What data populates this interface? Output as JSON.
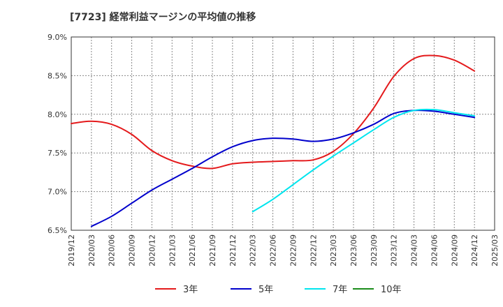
{
  "chart_data": {
    "type": "line",
    "title": "[7723]  経常利益マージンの平均値の推移",
    "xlabel": "",
    "ylabel": "",
    "x_ticks": [
      "2019/12",
      "2020/03",
      "2020/06",
      "2020/09",
      "2020/12",
      "2021/03",
      "2021/06",
      "2021/09",
      "2021/12",
      "2022/03",
      "2022/06",
      "2022/09",
      "2022/12",
      "2023/03",
      "2023/06",
      "2023/09",
      "2023/12",
      "2024/03",
      "2024/06",
      "2024/09",
      "2024/12",
      "2025/03"
    ],
    "ylim": [
      6.5,
      9.0
    ],
    "y_ticks": [
      6.5,
      7.0,
      7.5,
      8.0,
      8.5,
      9.0
    ],
    "y_tick_labels": [
      "6.5%",
      "7.0%",
      "7.5%",
      "8.0%",
      "8.5%",
      "9.0%"
    ],
    "grid": true,
    "legend_position": "bottom",
    "series": [
      {
        "name": "3年",
        "color": "#e41a1c",
        "points": [
          [
            "2019/12",
            7.88
          ],
          [
            "2020/03",
            7.91
          ],
          [
            "2020/06",
            7.87
          ],
          [
            "2020/09",
            7.74
          ],
          [
            "2020/12",
            7.53
          ],
          [
            "2021/03",
            7.4
          ],
          [
            "2021/06",
            7.33
          ],
          [
            "2021/09",
            7.3
          ],
          [
            "2021/12",
            7.36
          ],
          [
            "2022/03",
            7.38
          ],
          [
            "2022/06",
            7.39
          ],
          [
            "2022/09",
            7.4
          ],
          [
            "2022/12",
            7.41
          ],
          [
            "2023/03",
            7.52
          ],
          [
            "2023/06",
            7.75
          ],
          [
            "2023/09",
            8.08
          ],
          [
            "2023/12",
            8.49
          ],
          [
            "2024/03",
            8.72
          ],
          [
            "2024/06",
            8.76
          ],
          [
            "2024/09",
            8.7
          ],
          [
            "2024/12",
            8.56
          ]
        ]
      },
      {
        "name": "5年",
        "color": "#0000cc",
        "points": [
          [
            "2020/03",
            6.55
          ],
          [
            "2020/06",
            6.68
          ],
          [
            "2020/09",
            6.85
          ],
          [
            "2020/12",
            7.02
          ],
          [
            "2021/03",
            7.16
          ],
          [
            "2021/06",
            7.3
          ],
          [
            "2021/09",
            7.45
          ],
          [
            "2021/12",
            7.58
          ],
          [
            "2022/03",
            7.66
          ],
          [
            "2022/06",
            7.69
          ],
          [
            "2022/09",
            7.68
          ],
          [
            "2022/12",
            7.65
          ],
          [
            "2023/03",
            7.68
          ],
          [
            "2023/06",
            7.76
          ],
          [
            "2023/09",
            7.87
          ],
          [
            "2023/12",
            8.01
          ],
          [
            "2024/03",
            8.05
          ],
          [
            "2024/06",
            8.04
          ],
          [
            "2024/09",
            8.0
          ],
          [
            "2024/12",
            7.96
          ]
        ]
      },
      {
        "name": "7年",
        "color": "#00e5ee",
        "points": [
          [
            "2022/03",
            6.74
          ],
          [
            "2022/06",
            6.9
          ],
          [
            "2022/09",
            7.09
          ],
          [
            "2022/12",
            7.28
          ],
          [
            "2023/03",
            7.46
          ],
          [
            "2023/06",
            7.63
          ],
          [
            "2023/09",
            7.8
          ],
          [
            "2023/12",
            7.96
          ],
          [
            "2024/03",
            8.05
          ],
          [
            "2024/06",
            8.06
          ],
          [
            "2024/09",
            8.02
          ],
          [
            "2024/12",
            7.98
          ]
        ]
      },
      {
        "name": "10年",
        "color": "#1a8c1a",
        "points": []
      }
    ]
  }
}
